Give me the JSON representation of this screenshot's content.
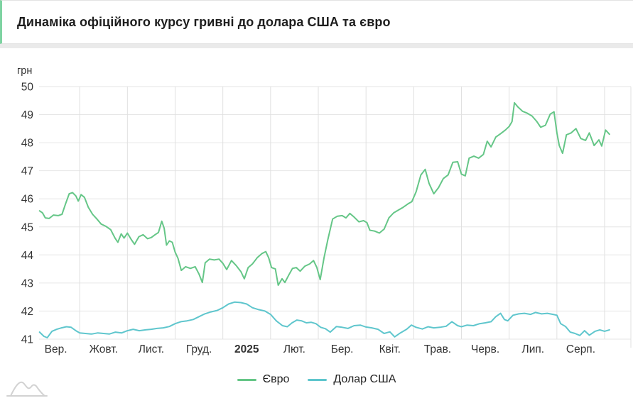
{
  "title": "Динаміка офіційного курсу гривні до долара США та євро",
  "colors": {
    "euro_line": "#65c687",
    "usd_line": "#5fc6cd",
    "title_accent_border": "#7ed3a2",
    "grid_horizontal": "#e6e6e6",
    "grid_vertical": "#e0e0e0",
    "tick_text": "#333333",
    "watermark": "#d2d2d2"
  },
  "legend": [
    {
      "label": "Євро",
      "series": "euro"
    },
    {
      "label": "Долар США",
      "series": "usd"
    }
  ],
  "chart_data": {
    "type": "line",
    "title": "Динаміка офіційного курсу гривні до долара США та євро",
    "ylabel": "грн",
    "ylim": [
      41,
      50
    ],
    "y_ticks": [
      41,
      42,
      43,
      44,
      45,
      46,
      47,
      48,
      49,
      50
    ],
    "grid": "on",
    "legend_position": "bottom",
    "x_unit": "months since 2024-09-01 (0 = Вер. 2024, 12 = Вер. 2025)",
    "x_range": [
      0,
      12.1
    ],
    "x_tick_labels": [
      "Вер.",
      "Жовт.",
      "Лист.",
      "Груд.",
      "2025",
      "Лют.",
      "Бер.",
      "Квіт.",
      "Трав.",
      "Черв.",
      "Лип.",
      "Серп."
    ],
    "x_bold_label": "2025",
    "series": [
      {
        "name": "Євро",
        "color": "#65c687",
        "points": [
          [
            0.16,
            45.57
          ],
          [
            0.22,
            45.5
          ],
          [
            0.28,
            45.32
          ],
          [
            0.36,
            45.3
          ],
          [
            0.45,
            45.42
          ],
          [
            0.55,
            45.4
          ],
          [
            0.63,
            45.45
          ],
          [
            0.7,
            45.8
          ],
          [
            0.78,
            46.18
          ],
          [
            0.85,
            46.22
          ],
          [
            0.92,
            46.1
          ],
          [
            0.97,
            45.92
          ],
          [
            1.03,
            46.15
          ],
          [
            1.1,
            46.05
          ],
          [
            1.18,
            45.7
          ],
          [
            1.27,
            45.45
          ],
          [
            1.36,
            45.28
          ],
          [
            1.45,
            45.1
          ],
          [
            1.55,
            45.02
          ],
          [
            1.65,
            44.9
          ],
          [
            1.74,
            44.6
          ],
          [
            1.8,
            44.45
          ],
          [
            1.87,
            44.75
          ],
          [
            1.93,
            44.6
          ],
          [
            2.0,
            44.78
          ],
          [
            2.08,
            44.55
          ],
          [
            2.15,
            44.38
          ],
          [
            2.24,
            44.65
          ],
          [
            2.33,
            44.72
          ],
          [
            2.42,
            44.58
          ],
          [
            2.5,
            44.62
          ],
          [
            2.58,
            44.72
          ],
          [
            2.65,
            44.8
          ],
          [
            2.72,
            45.2
          ],
          [
            2.77,
            44.95
          ],
          [
            2.82,
            44.35
          ],
          [
            2.88,
            44.5
          ],
          [
            2.94,
            44.45
          ],
          [
            3.0,
            44.1
          ],
          [
            3.06,
            43.88
          ],
          [
            3.13,
            43.45
          ],
          [
            3.22,
            43.58
          ],
          [
            3.32,
            43.52
          ],
          [
            3.42,
            43.58
          ],
          [
            3.5,
            43.32
          ],
          [
            3.57,
            43.02
          ],
          [
            3.63,
            43.72
          ],
          [
            3.72,
            43.85
          ],
          [
            3.82,
            43.82
          ],
          [
            3.92,
            43.85
          ],
          [
            4.0,
            43.7
          ],
          [
            4.08,
            43.48
          ],
          [
            4.18,
            43.8
          ],
          [
            4.28,
            43.62
          ],
          [
            4.38,
            43.4
          ],
          [
            4.45,
            43.15
          ],
          [
            4.53,
            43.55
          ],
          [
            4.62,
            43.68
          ],
          [
            4.72,
            43.9
          ],
          [
            4.82,
            44.05
          ],
          [
            4.9,
            44.12
          ],
          [
            4.96,
            43.9
          ],
          [
            5.02,
            43.55
          ],
          [
            5.1,
            43.5
          ],
          [
            5.16,
            42.92
          ],
          [
            5.24,
            43.15
          ],
          [
            5.3,
            43.02
          ],
          [
            5.38,
            43.28
          ],
          [
            5.46,
            43.52
          ],
          [
            5.54,
            43.55
          ],
          [
            5.62,
            43.42
          ],
          [
            5.72,
            43.6
          ],
          [
            5.82,
            43.68
          ],
          [
            5.9,
            43.8
          ],
          [
            5.97,
            43.55
          ],
          [
            6.04,
            43.12
          ],
          [
            6.12,
            43.9
          ],
          [
            6.2,
            44.55
          ],
          [
            6.3,
            45.28
          ],
          [
            6.4,
            45.38
          ],
          [
            6.5,
            45.4
          ],
          [
            6.58,
            45.32
          ],
          [
            6.66,
            45.48
          ],
          [
            6.75,
            45.35
          ],
          [
            6.85,
            45.18
          ],
          [
            6.95,
            45.22
          ],
          [
            7.02,
            45.15
          ],
          [
            7.08,
            44.88
          ],
          [
            7.18,
            44.85
          ],
          [
            7.28,
            44.78
          ],
          [
            7.38,
            44.92
          ],
          [
            7.48,
            45.32
          ],
          [
            7.58,
            45.5
          ],
          [
            7.68,
            45.6
          ],
          [
            7.78,
            45.7
          ],
          [
            7.88,
            45.82
          ],
          [
            7.96,
            45.9
          ],
          [
            8.05,
            46.25
          ],
          [
            8.15,
            46.85
          ],
          [
            8.24,
            47.05
          ],
          [
            8.32,
            46.55
          ],
          [
            8.42,
            46.18
          ],
          [
            8.52,
            46.4
          ],
          [
            8.62,
            46.72
          ],
          [
            8.72,
            46.85
          ],
          [
            8.82,
            47.3
          ],
          [
            8.92,
            47.32
          ],
          [
            9.0,
            46.88
          ],
          [
            9.08,
            46.82
          ],
          [
            9.16,
            47.45
          ],
          [
            9.26,
            47.52
          ],
          [
            9.36,
            47.45
          ],
          [
            9.46,
            47.58
          ],
          [
            9.54,
            48.05
          ],
          [
            9.62,
            47.85
          ],
          [
            9.72,
            48.2
          ],
          [
            9.82,
            48.32
          ],
          [
            9.92,
            48.45
          ],
          [
            10.0,
            48.58
          ],
          [
            10.06,
            48.75
          ],
          [
            10.11,
            49.42
          ],
          [
            10.18,
            49.28
          ],
          [
            10.28,
            49.12
          ],
          [
            10.38,
            49.05
          ],
          [
            10.48,
            48.95
          ],
          [
            10.58,
            48.75
          ],
          [
            10.66,
            48.55
          ],
          [
            10.76,
            48.62
          ],
          [
            10.86,
            49.02
          ],
          [
            10.94,
            49.1
          ],
          [
            11.0,
            48.35
          ],
          [
            11.05,
            47.9
          ],
          [
            11.12,
            47.62
          ],
          [
            11.2,
            48.28
          ],
          [
            11.3,
            48.35
          ],
          [
            11.4,
            48.5
          ],
          [
            11.5,
            48.15
          ],
          [
            11.6,
            48.08
          ],
          [
            11.68,
            48.35
          ],
          [
            11.78,
            47.9
          ],
          [
            11.88,
            48.1
          ],
          [
            11.94,
            47.88
          ],
          [
            12.02,
            48.45
          ],
          [
            12.1,
            48.3
          ]
        ]
      },
      {
        "name": "Долар США",
        "color": "#5fc6cd",
        "points": [
          [
            0.16,
            41.25
          ],
          [
            0.25,
            41.1
          ],
          [
            0.32,
            41.05
          ],
          [
            0.42,
            41.28
          ],
          [
            0.52,
            41.35
          ],
          [
            0.62,
            41.4
          ],
          [
            0.72,
            41.44
          ],
          [
            0.82,
            41.42
          ],
          [
            0.92,
            41.3
          ],
          [
            1.0,
            41.22
          ],
          [
            1.12,
            41.2
          ],
          [
            1.25,
            41.18
          ],
          [
            1.38,
            41.22
          ],
          [
            1.5,
            41.2
          ],
          [
            1.62,
            41.18
          ],
          [
            1.75,
            41.25
          ],
          [
            1.88,
            41.22
          ],
          [
            2.0,
            41.3
          ],
          [
            2.12,
            41.35
          ],
          [
            2.25,
            41.3
          ],
          [
            2.38,
            41.33
          ],
          [
            2.5,
            41.35
          ],
          [
            2.62,
            41.38
          ],
          [
            2.75,
            41.4
          ],
          [
            2.88,
            41.45
          ],
          [
            3.0,
            41.55
          ],
          [
            3.12,
            41.62
          ],
          [
            3.25,
            41.65
          ],
          [
            3.38,
            41.7
          ],
          [
            3.5,
            41.8
          ],
          [
            3.62,
            41.9
          ],
          [
            3.75,
            41.97
          ],
          [
            3.88,
            42.02
          ],
          [
            4.0,
            42.12
          ],
          [
            4.12,
            42.25
          ],
          [
            4.25,
            42.32
          ],
          [
            4.38,
            42.3
          ],
          [
            4.5,
            42.25
          ],
          [
            4.62,
            42.12
          ],
          [
            4.75,
            42.05
          ],
          [
            4.88,
            42.0
          ],
          [
            5.0,
            41.88
          ],
          [
            5.12,
            41.65
          ],
          [
            5.25,
            41.48
          ],
          [
            5.35,
            41.44
          ],
          [
            5.45,
            41.58
          ],
          [
            5.55,
            41.68
          ],
          [
            5.65,
            41.65
          ],
          [
            5.75,
            41.58
          ],
          [
            5.85,
            41.6
          ],
          [
            5.95,
            41.55
          ],
          [
            6.05,
            41.42
          ],
          [
            6.15,
            41.37
          ],
          [
            6.25,
            41.25
          ],
          [
            6.38,
            41.45
          ],
          [
            6.5,
            41.42
          ],
          [
            6.62,
            41.38
          ],
          [
            6.75,
            41.48
          ],
          [
            6.88,
            41.5
          ],
          [
            7.0,
            41.43
          ],
          [
            7.12,
            41.4
          ],
          [
            7.25,
            41.35
          ],
          [
            7.38,
            41.2
          ],
          [
            7.5,
            41.26
          ],
          [
            7.6,
            41.08
          ],
          [
            7.72,
            41.22
          ],
          [
            7.85,
            41.35
          ],
          [
            7.95,
            41.5
          ],
          [
            8.05,
            41.42
          ],
          [
            8.18,
            41.36
          ],
          [
            8.3,
            41.44
          ],
          [
            8.42,
            41.4
          ],
          [
            8.55,
            41.42
          ],
          [
            8.68,
            41.46
          ],
          [
            8.8,
            41.62
          ],
          [
            8.92,
            41.48
          ],
          [
            9.0,
            41.44
          ],
          [
            9.12,
            41.5
          ],
          [
            9.25,
            41.48
          ],
          [
            9.38,
            41.55
          ],
          [
            9.5,
            41.58
          ],
          [
            9.62,
            41.62
          ],
          [
            9.72,
            41.8
          ],
          [
            9.82,
            41.92
          ],
          [
            9.9,
            41.7
          ],
          [
            9.97,
            41.65
          ],
          [
            10.08,
            41.85
          ],
          [
            10.2,
            41.9
          ],
          [
            10.32,
            41.92
          ],
          [
            10.45,
            41.88
          ],
          [
            10.55,
            41.95
          ],
          [
            10.68,
            41.9
          ],
          [
            10.8,
            41.92
          ],
          [
            10.92,
            41.88
          ],
          [
            11.0,
            41.85
          ],
          [
            11.08,
            41.55
          ],
          [
            11.18,
            41.45
          ],
          [
            11.28,
            41.25
          ],
          [
            11.38,
            41.2
          ],
          [
            11.48,
            41.13
          ],
          [
            11.58,
            41.3
          ],
          [
            11.68,
            41.14
          ],
          [
            11.8,
            41.28
          ],
          [
            11.9,
            41.33
          ],
          [
            12.0,
            41.28
          ],
          [
            12.1,
            41.33
          ]
        ]
      }
    ]
  }
}
